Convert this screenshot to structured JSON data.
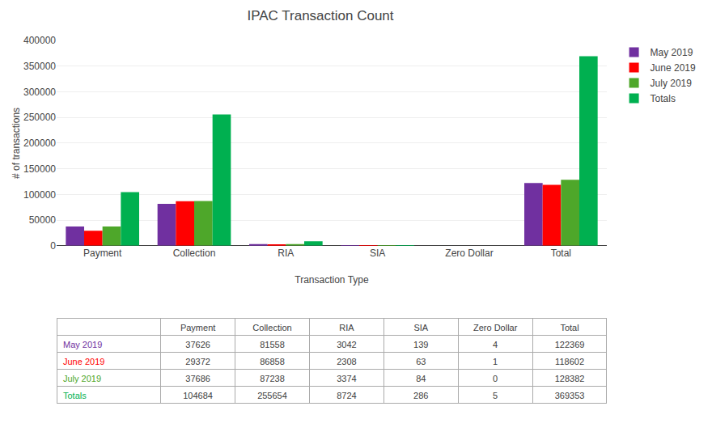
{
  "chart_data": {
    "type": "bar",
    "title": "IPAC Transaction Count",
    "xlabel": "Transaction Type",
    "ylabel": "# of transactions",
    "categories": [
      "Payment",
      "Collection",
      "RIA",
      "SIA",
      "Zero Dollar",
      "Total"
    ],
    "series": [
      {
        "name": "May 2019",
        "color": "#7030A0",
        "values": [
          37626,
          81558,
          3042,
          139,
          4,
          122369
        ]
      },
      {
        "name": "June 2019",
        "color": "#FF0000",
        "values": [
          29372,
          86858,
          2308,
          63,
          1,
          118602
        ]
      },
      {
        "name": "July 2019",
        "color": "#4EA72A",
        "values": [
          37686,
          87238,
          3374,
          84,
          0,
          128382
        ]
      },
      {
        "name": "Totals",
        "color": "#00B050",
        "values": [
          104684,
          255654,
          8724,
          286,
          5,
          369353
        ]
      }
    ],
    "ylim": [
      0,
      400000
    ],
    "yticks": [
      0,
      50000,
      100000,
      150000,
      200000,
      250000,
      300000,
      350000,
      400000
    ],
    "grid": true,
    "legend": "upper right"
  }
}
